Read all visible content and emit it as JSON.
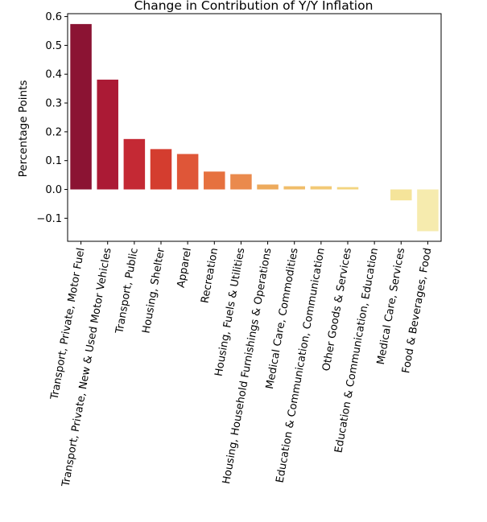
{
  "chart_data": {
    "type": "bar",
    "title": "Change in Contribution of Y/Y Inflation",
    "xlabel": "",
    "ylabel": "Percentage Points",
    "ylim": [
      -0.18,
      0.61
    ],
    "yticks": [
      -0.1,
      0.0,
      0.1,
      0.2,
      0.3,
      0.4,
      0.5,
      0.6
    ],
    "ytick_labels": [
      "−0.1",
      "0.0",
      "0.1",
      "0.2",
      "0.3",
      "0.4",
      "0.5",
      "0.6"
    ],
    "grid": false,
    "categories": [
      "Transport, Private, Motor Fuel",
      "Transport, Private, New & Used Motor Vehicles",
      "Transport, Public",
      "Housing, Shelter",
      "Apparel",
      "Recreation",
      "Housing, Fuels & Utilities",
      "Housing, Household Furnishings & Operations",
      "Medical Care, Commodities",
      "Education & Communication, Communication",
      "Other Goods & Services",
      "Education & Communication, Education",
      "Medical Care, Services",
      "Food & Beverages, Food"
    ],
    "values": [
      0.574,
      0.381,
      0.175,
      0.14,
      0.123,
      0.062,
      0.053,
      0.017,
      0.011,
      0.011,
      0.008,
      0.0,
      -0.038,
      -0.145
    ],
    "colors": [
      "#8b1333",
      "#ab1a35",
      "#c42934",
      "#d43d2f",
      "#df5638",
      "#e6713f",
      "#ea8a4d",
      "#edaa5c",
      "#f0bd69",
      "#f2c975",
      "#f3d47f",
      "#f4dd8b",
      "#f5e49a",
      "#f6ebae"
    ]
  }
}
